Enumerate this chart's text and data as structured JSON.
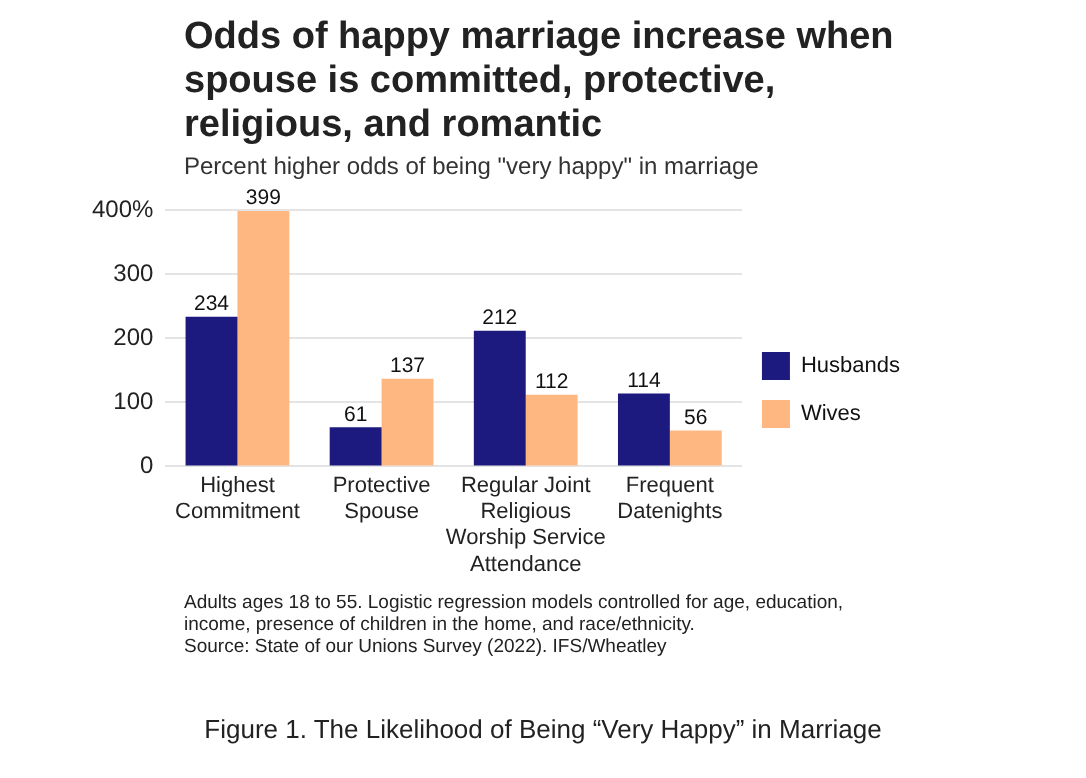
{
  "chart_data": {
    "type": "bar",
    "title": "Odds of happy marriage increase when spouse is committed, protective, religious, and romantic",
    "subtitle": "Percent higher odds of being \"very happy\" in marriage",
    "categories": [
      "Highest Commitment",
      "Protective Spouse",
      "Regular Joint Religious Worship Service Attendance",
      "Frequent Datenights"
    ],
    "series": [
      {
        "name": "Husbands",
        "color": "#1c1a7e",
        "values": [
          234,
          61,
          212,
          114
        ]
      },
      {
        "name": "Wives",
        "color": "#ffb782",
        "values": [
          399,
          137,
          112,
          56
        ]
      }
    ],
    "ylim": [
      0,
      400
    ],
    "yticks": [
      0,
      100,
      200,
      300,
      {
        "value": 400,
        "label": "400%"
      }
    ],
    "grid": "y",
    "legend": "right",
    "data_labels": true,
    "annotations": [
      "Adults ages 18 to 55. Logistic regression models controlled for age, education, income, presence of children in the home, and race/ethnicity.",
      "Source: State of our Unions Survey (2022). IFS/Wheatley",
      "Figure 1. The Likelihood of Being “Very Happy” in Marriage"
    ]
  }
}
